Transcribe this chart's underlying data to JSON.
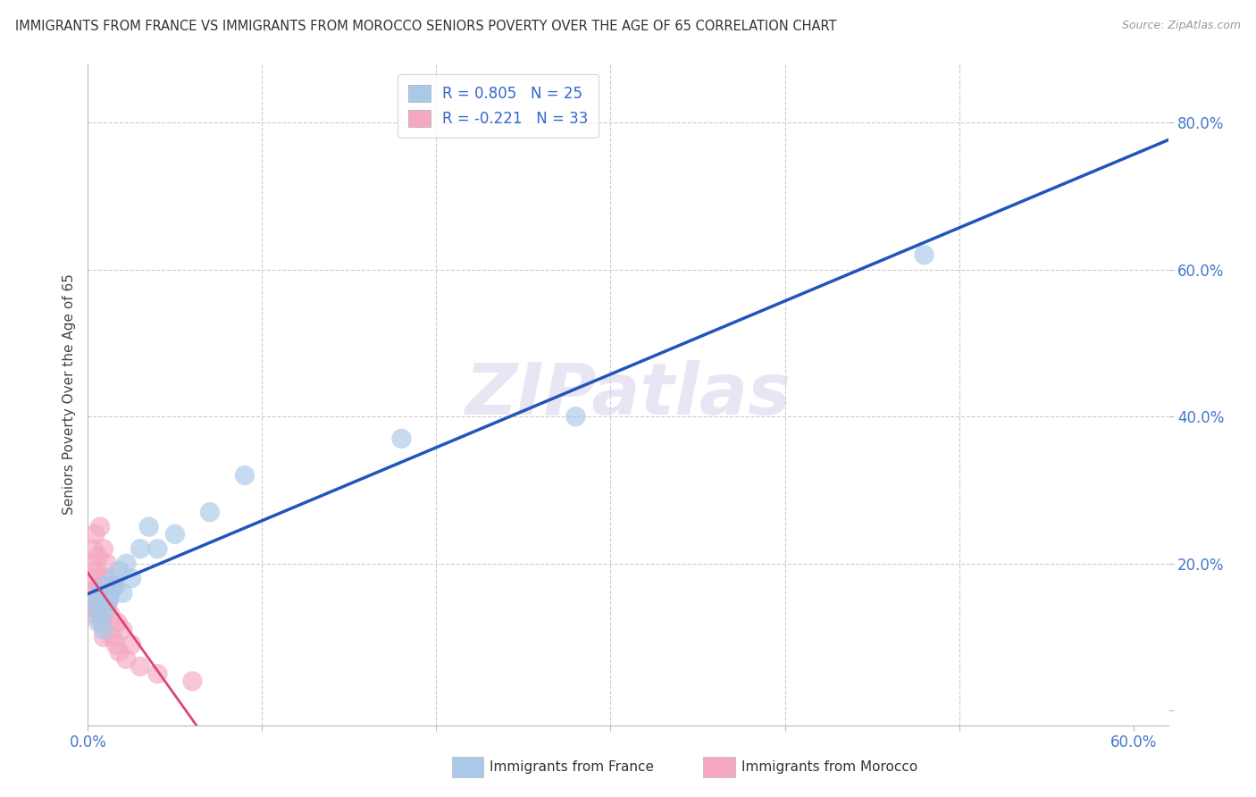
{
  "title": "IMMIGRANTS FROM FRANCE VS IMMIGRANTS FROM MOROCCO SENIORS POVERTY OVER THE AGE OF 65 CORRELATION CHART",
  "source": "Source: ZipAtlas.com",
  "ylabel": "Seniors Poverty Over the Age of 65",
  "xlim": [
    0.0,
    0.62
  ],
  "ylim": [
    -0.02,
    0.88
  ],
  "xtick_positions": [
    0.0,
    0.1,
    0.2,
    0.3,
    0.4,
    0.5,
    0.6
  ],
  "xticklabels": [
    "0.0%",
    "",
    "",
    "",
    "",
    "",
    "60.0%"
  ],
  "ytick_positions": [
    0.0,
    0.2,
    0.4,
    0.6,
    0.8
  ],
  "ytick_labels": [
    "",
    "20.0%",
    "40.0%",
    "60.0%",
    "80.0%"
  ],
  "watermark": "ZIPatlas",
  "france_R": 0.805,
  "france_N": 25,
  "morocco_R": -0.221,
  "morocco_N": 33,
  "france_color": "#aac8e8",
  "morocco_color": "#f5a8c0",
  "france_line_color": "#2255bb",
  "morocco_line_color": "#dd4477",
  "france_points_x": [
    0.003,
    0.005,
    0.006,
    0.007,
    0.008,
    0.009,
    0.01,
    0.011,
    0.012,
    0.013,
    0.015,
    0.016,
    0.018,
    0.02,
    0.022,
    0.025,
    0.03,
    0.035,
    0.04,
    0.05,
    0.07,
    0.09,
    0.18,
    0.28,
    0.48
  ],
  "france_points_y": [
    0.14,
    0.15,
    0.12,
    0.16,
    0.13,
    0.11,
    0.17,
    0.14,
    0.15,
    0.16,
    0.18,
    0.17,
    0.19,
    0.16,
    0.2,
    0.18,
    0.22,
    0.25,
    0.22,
    0.24,
    0.27,
    0.32,
    0.37,
    0.4,
    0.62
  ],
  "morocco_points_x": [
    0.001,
    0.002,
    0.002,
    0.003,
    0.003,
    0.004,
    0.004,
    0.005,
    0.005,
    0.006,
    0.006,
    0.007,
    0.007,
    0.008,
    0.008,
    0.009,
    0.009,
    0.01,
    0.01,
    0.011,
    0.012,
    0.013,
    0.014,
    0.015,
    0.016,
    0.017,
    0.018,
    0.02,
    0.022,
    0.025,
    0.03,
    0.04,
    0.06
  ],
  "morocco_points_y": [
    0.15,
    0.2,
    0.16,
    0.22,
    0.18,
    0.24,
    0.14,
    0.19,
    0.13,
    0.17,
    0.21,
    0.15,
    0.25,
    0.16,
    0.12,
    0.22,
    0.1,
    0.18,
    0.14,
    0.2,
    0.15,
    0.13,
    0.1,
    0.17,
    0.09,
    0.12,
    0.08,
    0.11,
    0.07,
    0.09,
    0.06,
    0.05,
    0.04
  ],
  "background_color": "#ffffff",
  "grid_color": "#cccccc"
}
